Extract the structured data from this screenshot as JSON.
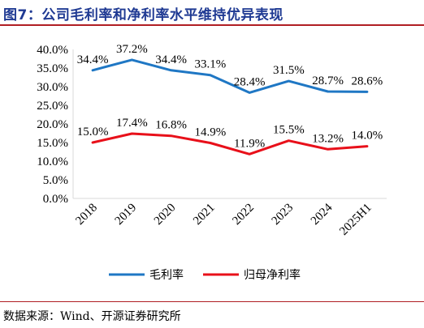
{
  "title": "图7：公司毛利率和净利率水平维持优异表现",
  "source": "数据来源：Wind、开源证券研究所",
  "colors": {
    "gross_margin": "#1f77c4",
    "net_margin": "#e8101a",
    "title": "#1f3a93",
    "rule": "#b01e23"
  },
  "chart_data": {
    "type": "line",
    "categories": [
      "2018",
      "2019",
      "2020",
      "2021",
      "2022",
      "2023",
      "2024",
      "2025H1"
    ],
    "ylim": [
      0,
      40
    ],
    "yticks": [
      "0.0%",
      "5.0%",
      "10.0%",
      "15.0%",
      "20.0%",
      "25.0%",
      "30.0%",
      "35.0%",
      "40.0%"
    ],
    "legend_position": "bottom",
    "grid": false,
    "series": [
      {
        "name": "毛利率",
        "values": [
          34.4,
          37.2,
          34.4,
          33.1,
          28.4,
          31.5,
          28.7,
          28.6
        ],
        "labels": [
          "34.4%",
          "37.2%",
          "34.4%",
          "33.1%",
          "28.4%",
          "31.5%",
          "28.7%",
          "28.6%"
        ]
      },
      {
        "name": "归母净利率",
        "values": [
          15.0,
          17.4,
          16.8,
          14.9,
          11.9,
          15.5,
          13.2,
          14.0
        ],
        "labels": [
          "15.0%",
          "17.4%",
          "16.8%",
          "14.9%",
          "11.9%",
          "15.5%",
          "13.2%",
          "14.0%"
        ]
      }
    ]
  }
}
